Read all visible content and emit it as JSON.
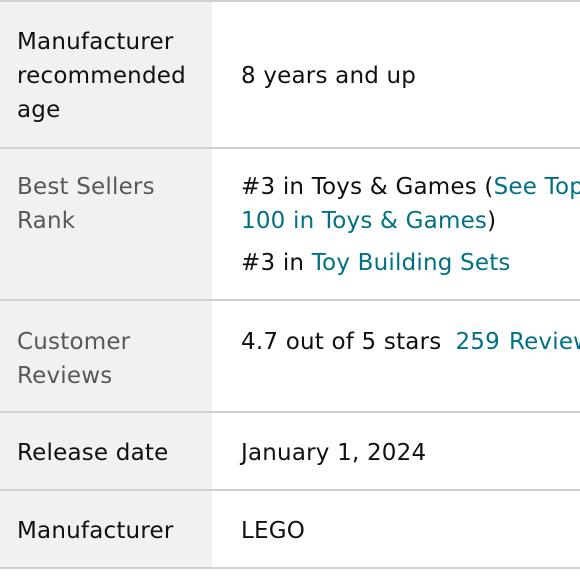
{
  "colors": {
    "label_bg": "#f0f2f2",
    "border": "#cdd1d3",
    "text": "#0f1111",
    "muted_text": "#565959",
    "link": "#007185"
  },
  "rows": {
    "age": {
      "label_lines": [
        "Manufacturer",
        "recommended",
        "age"
      ],
      "value": "8 years and up"
    },
    "rank": {
      "label_lines": [
        "Best Sellers",
        "Rank"
      ],
      "line1_prefix": "#3 in Toys & Games (",
      "line1_link": "See Top",
      "line2_link": "100 in Toys & Games",
      "line2_suffix": ")",
      "line3_prefix": "#3 in ",
      "line3_link": "Toy Building Sets"
    },
    "reviews": {
      "label_lines": [
        "Customer",
        "Reviews"
      ],
      "rating_text": "4.7 out of 5 stars",
      "review_count": "259",
      "review_word": "Reviews"
    },
    "release": {
      "label": "Release date",
      "value": "January 1, 2024"
    },
    "manufacturer": {
      "label": "Manufacturer",
      "value": "LEGO"
    }
  }
}
